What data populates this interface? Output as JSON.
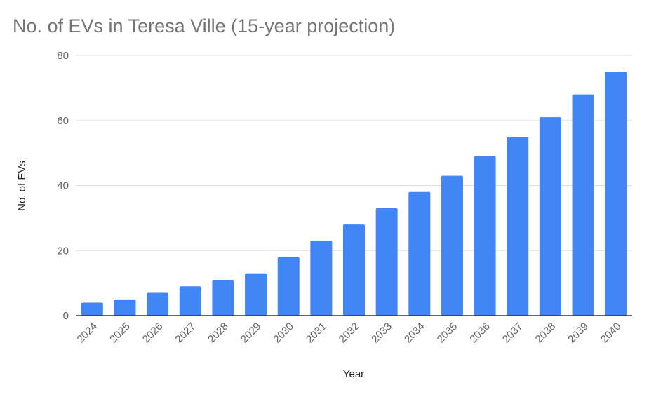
{
  "chart_data": {
    "type": "bar",
    "title": "No. of EVs in Teresa Ville (15-year projection)",
    "xlabel": "Year",
    "ylabel": "No. of EVs",
    "categories": [
      "2024",
      "2025",
      "2026",
      "2027",
      "2028",
      "2029",
      "2030",
      "2031",
      "2032",
      "2033",
      "2034",
      "2035",
      "2036",
      "2037",
      "2038",
      "2039",
      "2040"
    ],
    "values": [
      4,
      5,
      7,
      9,
      11,
      13,
      18,
      23,
      28,
      33,
      38,
      43,
      49,
      55,
      61,
      68,
      75
    ],
    "ylim": [
      0,
      80
    ],
    "yticks": [
      "0",
      "20",
      "40",
      "60",
      "80"
    ],
    "grid": true,
    "legend": "none",
    "bar_color": "#4285f4"
  }
}
